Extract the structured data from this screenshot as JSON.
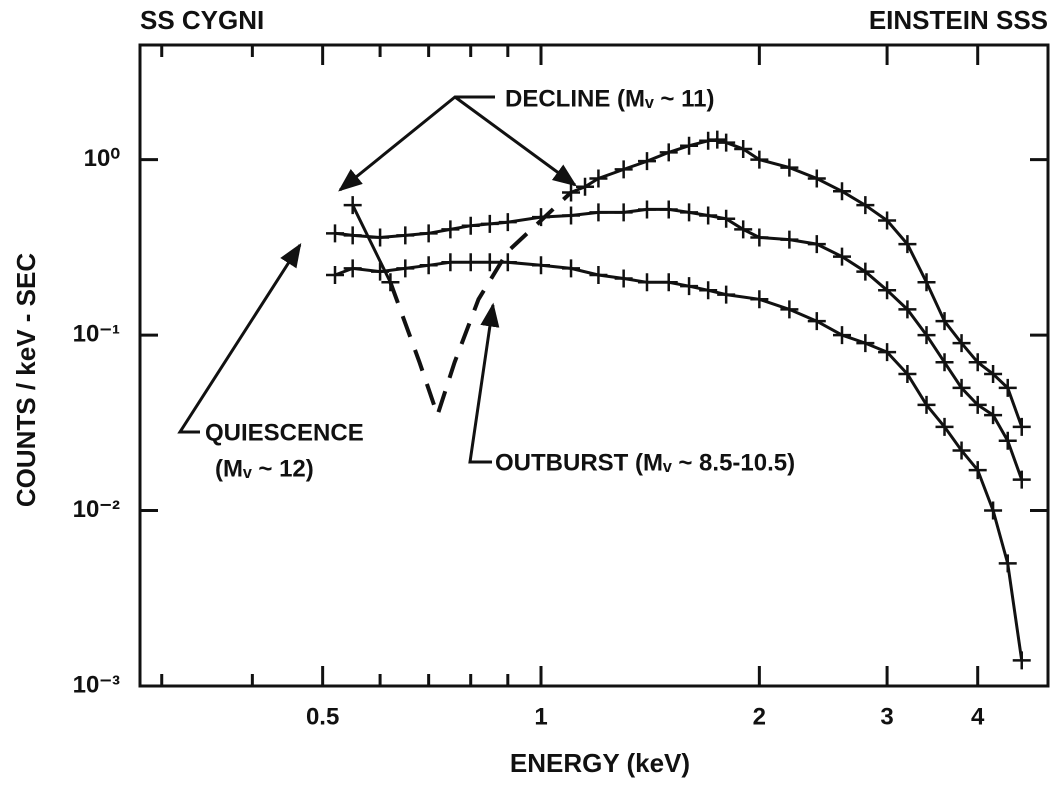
{
  "chart_data": {
    "type": "line",
    "title": "SS CYGNI",
    "subtitle": "EINSTEIN SSS",
    "x_label": "ENERGY (keV)",
    "y_label": "COUNTS / keV - SEC",
    "xscale": "log",
    "yscale": "log",
    "xlim": [
      0.28,
      5
    ],
    "ylim": [
      0.001,
      4.5
    ],
    "xticks": [
      0.5,
      1,
      2,
      3,
      4
    ],
    "xminor_ticks": [
      0.3,
      0.4,
      0.6,
      0.7,
      0.8,
      0.9
    ],
    "yticks": [
      {
        "value": 1,
        "label": "10⁰"
      },
      {
        "value": 0.1,
        "label": "10⁻¹"
      },
      {
        "value": 0.01,
        "label": "10⁻²"
      },
      {
        "value": 0.001,
        "label": "10⁻³"
      }
    ],
    "color": "#111111",
    "series": [
      {
        "x": [
          0.55,
          0.62,
          0.8,
          1.1,
          1.15,
          1.2,
          1.3,
          1.4,
          1.5,
          1.6,
          1.7,
          1.75,
          1.8,
          1.9,
          2.0,
          2.2,
          2.4,
          2.6,
          2.8,
          3.0,
          3.2,
          3.4,
          3.6,
          3.8,
          4.0,
          4.2,
          4.4,
          4.6
        ],
        "values": [
          0.55,
          0.2,
          null,
          0.65,
          0.7,
          0.78,
          0.88,
          0.98,
          1.1,
          1.2,
          1.28,
          1.3,
          1.25,
          1.15,
          1.0,
          0.9,
          0.78,
          0.66,
          0.55,
          0.45,
          0.33,
          0.2,
          0.12,
          0.09,
          0.07,
          0.06,
          0.05,
          0.03
        ]
      },
      {
        "x": [
          0.62,
          0.68,
          0.72,
          0.76,
          0.82,
          0.9,
          1.0,
          1.1
        ],
        "values": [
          0.2,
          0.07,
          0.035,
          0.07,
          0.16,
          0.3,
          0.45,
          0.65
        ],
        "dash": true
      },
      {
        "x": [
          0.52,
          0.55,
          0.6,
          0.65,
          0.7,
          0.75,
          0.8,
          0.85,
          0.9,
          1.0,
          1.1,
          1.2,
          1.3,
          1.4,
          1.5,
          1.6,
          1.7,
          1.8,
          1.9,
          2.0,
          2.2,
          2.4,
          2.6,
          2.8,
          3.0,
          3.2,
          3.4,
          3.6,
          3.8,
          4.0,
          4.2,
          4.4,
          4.6
        ],
        "values": [
          0.38,
          0.37,
          0.36,
          0.37,
          0.38,
          0.4,
          0.42,
          0.43,
          0.44,
          0.47,
          0.48,
          0.5,
          0.5,
          0.52,
          0.52,
          0.5,
          0.48,
          0.46,
          0.4,
          0.36,
          0.35,
          0.33,
          0.28,
          0.23,
          0.18,
          0.14,
          0.1,
          0.07,
          0.05,
          0.04,
          0.035,
          0.025,
          0.015
        ]
      },
      {
        "x": [
          0.52,
          0.55,
          0.6,
          0.65,
          0.7,
          0.75,
          0.8,
          0.85,
          0.9,
          1.0,
          1.1,
          1.2,
          1.3,
          1.4,
          1.5,
          1.6,
          1.7,
          1.8,
          2.0,
          2.2,
          2.4,
          2.6,
          2.8,
          3.0,
          3.2,
          3.4,
          3.6,
          3.8,
          4.0,
          4.2,
          4.4,
          4.6
        ],
        "values": [
          0.22,
          0.24,
          0.23,
          0.24,
          0.25,
          0.26,
          0.26,
          0.26,
          0.26,
          0.25,
          0.24,
          0.22,
          0.21,
          0.2,
          0.2,
          0.19,
          0.18,
          0.17,
          0.16,
          0.14,
          0.12,
          0.1,
          0.09,
          0.08,
          0.06,
          0.04,
          0.03,
          0.022,
          0.017,
          0.01,
          0.005,
          0.0014
        ]
      }
    ],
    "annotations": [
      "DECLINE (Mᵥ ~ 11)",
      "QUIESCENCE",
      "(Mᵥ ~ 12)",
      "OUTBURST (Mᵥ ~ 8.5-10.5)"
    ]
  }
}
